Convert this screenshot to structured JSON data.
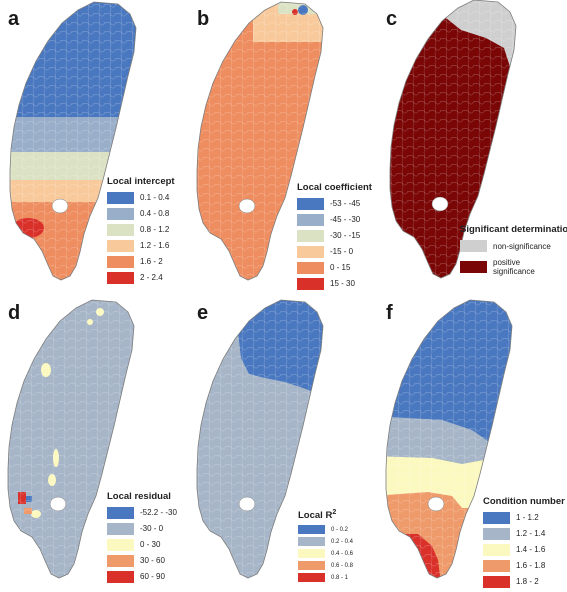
{
  "panels": {
    "a": {
      "letter": "a",
      "legend_title": "Local intercept",
      "legend": [
        {
          "label": "0.1 - 0.4",
          "color": "#4a78c0"
        },
        {
          "label": "0.4 - 0.8",
          "color": "#99aec8"
        },
        {
          "label": "0.8 - 1.2",
          "color": "#dbe2c3"
        },
        {
          "label": "1.2 - 1.6",
          "color": "#f8c99a"
        },
        {
          "label": "1.6 - 2",
          "color": "#ee8d5f"
        },
        {
          "label": "2 - 2.4",
          "color": "#d9302a"
        }
      ]
    },
    "b": {
      "letter": "b",
      "legend_title": "Local coefficient",
      "legend": [
        {
          "label": "-53 - -45",
          "color": "#4a78c0"
        },
        {
          "label": "-45 - -30",
          "color": "#99aec8"
        },
        {
          "label": "-30 - -15",
          "color": "#dbe2c3"
        },
        {
          "label": "-15 - 0",
          "color": "#f8c99a"
        },
        {
          "label": "0 - 15",
          "color": "#ee8d5f"
        },
        {
          "label": "15 - 30",
          "color": "#d9302a"
        }
      ]
    },
    "c": {
      "letter": "c",
      "legend_title": "Significant determination",
      "legend": [
        {
          "label": "non-significance",
          "color": "#cfcfcf"
        },
        {
          "label": "positive significance",
          "color": "#7a0606"
        }
      ]
    },
    "d": {
      "letter": "d",
      "legend_title": "Local residual",
      "legend": [
        {
          "label": "-52.2 - -30",
          "color": "#4a78c0"
        },
        {
          "label": "-30 - 0",
          "color": "#a6b5c7"
        },
        {
          "label": "0 - 30",
          "color": "#fbf9c0"
        },
        {
          "label": "30 - 60",
          "color": "#ee9a6a"
        },
        {
          "label": "60 - 90",
          "color": "#d9302a"
        }
      ]
    },
    "e": {
      "letter": "e",
      "legend_title_main": "Local R",
      "legend_title_sup": "2",
      "legend": [
        {
          "label": "0 - 0.2",
          "color": "#4a78c0"
        },
        {
          "label": "0.2 - 0.4",
          "color": "#a6b5c7"
        },
        {
          "label": "0.4 - 0.6",
          "color": "#fbf9c0"
        },
        {
          "label": "0.6 - 0.8",
          "color": "#ee9a6a"
        },
        {
          "label": "0.8 - 1",
          "color": "#d9302a"
        }
      ]
    },
    "f": {
      "letter": "f",
      "legend_title": "Condition number",
      "legend": [
        {
          "label": "1 - 1.2",
          "color": "#4a78c0"
        },
        {
          "label": "1.2 - 1.4",
          "color": "#a6b5c7"
        },
        {
          "label": "1.4 - 1.6",
          "color": "#fbf9c0"
        },
        {
          "label": "1.6 - 1.8",
          "color": "#ee9a6a"
        },
        {
          "label": "1.8 - 2",
          "color": "#d9302a"
        }
      ]
    }
  },
  "colors": {
    "outline": "#7d7d7d",
    "b_fill": "#ee8d5f",
    "c_fill": "#7a0606",
    "c_north": "#cfcfcf",
    "d_fill": "#a6b5c7",
    "e_fill": "#a6b5c7",
    "e_north": "#4a78c0"
  }
}
